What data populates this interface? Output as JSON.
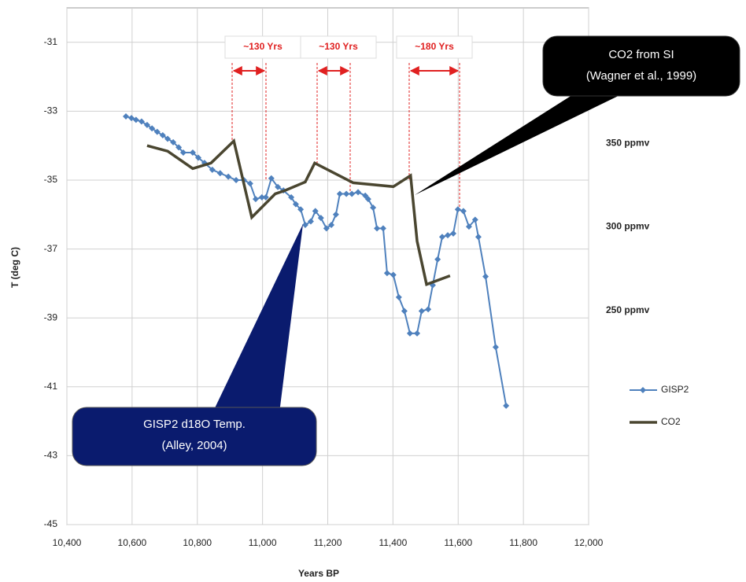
{
  "chart_data": {
    "type": "line",
    "xlabel": "Years BP",
    "ylabel": "T (deg C)",
    "xlim": [
      10400,
      12000
    ],
    "xticks": [
      {
        "value": 10400,
        "label": "10,400"
      },
      {
        "value": 10600,
        "label": "10,600"
      },
      {
        "value": 10800,
        "label": "10,800"
      },
      {
        "value": 11000,
        "label": "11,000"
      },
      {
        "value": 11200,
        "label": "11,200"
      },
      {
        "value": 11400,
        "label": "11,400"
      },
      {
        "value": 11600,
        "label": "11,600"
      },
      {
        "value": 11800,
        "label": "11,800"
      },
      {
        "value": 12000,
        "label": "12,000"
      }
    ],
    "ylim": [
      -45,
      -30
    ],
    "yticks": [
      -31,
      -33,
      -35,
      -37,
      -39,
      -41,
      -43,
      -45
    ],
    "y2lim": [
      122,
      431
    ],
    "y2ticks": [
      {
        "value": 350,
        "label": "350 ppmv"
      },
      {
        "value": 300,
        "label": "300 ppmv"
      },
      {
        "value": 250,
        "label": "250 ppmv"
      }
    ],
    "grid": true,
    "legend": "right",
    "series": [
      {
        "name": "GISP2",
        "color": "#4f81bd",
        "marker": "diamond",
        "x": [
          10581,
          10598,
          10612,
          10629,
          10646,
          10661,
          10677,
          10694,
          10709,
          10726,
          10743,
          10757,
          10786,
          10803,
          10822,
          10846,
          10870,
          10895,
          10919,
          10943,
          10962,
          10979,
          10998,
          11010,
          11027,
          11047,
          11064,
          11088,
          11102,
          11117,
          11131,
          11148,
          11162,
          11179,
          11196,
          11211,
          11225,
          11237,
          11257,
          11274,
          11293,
          11315,
          11324,
          11339,
          11351,
          11370,
          11382,
          11401,
          11418,
          11435,
          11452,
          11474,
          11488,
          11508,
          11522,
          11537,
          11551,
          11568,
          11585,
          11599,
          11616,
          11633,
          11652,
          11662,
          11684,
          11715,
          11747
        ],
        "values": [
          -33.15,
          -33.2,
          -33.25,
          -33.3,
          -33.4,
          -33.5,
          -33.6,
          -33.7,
          -33.8,
          -33.9,
          -34.05,
          -34.2,
          -34.2,
          -34.35,
          -34.5,
          -34.7,
          -34.8,
          -34.9,
          -35.0,
          -35.0,
          -35.1,
          -35.55,
          -35.5,
          -35.5,
          -34.95,
          -35.2,
          -35.3,
          -35.5,
          -35.7,
          -35.85,
          -36.3,
          -36.2,
          -35.9,
          -36.1,
          -36.4,
          -36.3,
          -36.0,
          -35.4,
          -35.4,
          -35.4,
          -35.35,
          -35.45,
          -35.55,
          -35.8,
          -36.4,
          -36.4,
          -37.7,
          -37.75,
          -38.4,
          -38.8,
          -39.45,
          -39.45,
          -38.8,
          -38.75,
          -38.05,
          -37.3,
          -36.65,
          -36.6,
          -36.55,
          -35.85,
          -35.9,
          -36.35,
          -36.15,
          -36.65,
          -37.8,
          -39.85,
          -41.55
        ]
      },
      {
        "name": "CO2",
        "color": "#4a4630",
        "axis": "y2",
        "x": [
          10646,
          10709,
          10786,
          10842,
          10912,
          10967,
          11039,
          11068,
          11131,
          11160,
          11278,
          11401,
          11454,
          11474,
          11503,
          11575
        ],
        "values": [
          348.6,
          345.3,
          334.9,
          338.2,
          351.4,
          305.7,
          319.8,
          321.7,
          326.9,
          338.2,
          326.4,
          324.1,
          330.7,
          291.5,
          265.6,
          270.8
        ]
      }
    ],
    "annotations": [
      "~130 Yrs",
      "~130 Yrs",
      "~180 Yrs"
    ],
    "callouts": [
      [
        "CO2 from SI",
        "(Wagner et al., 1999)"
      ],
      [
        "GISP2 d18O Temp.",
        "(Alley, 2004)"
      ]
    ]
  }
}
